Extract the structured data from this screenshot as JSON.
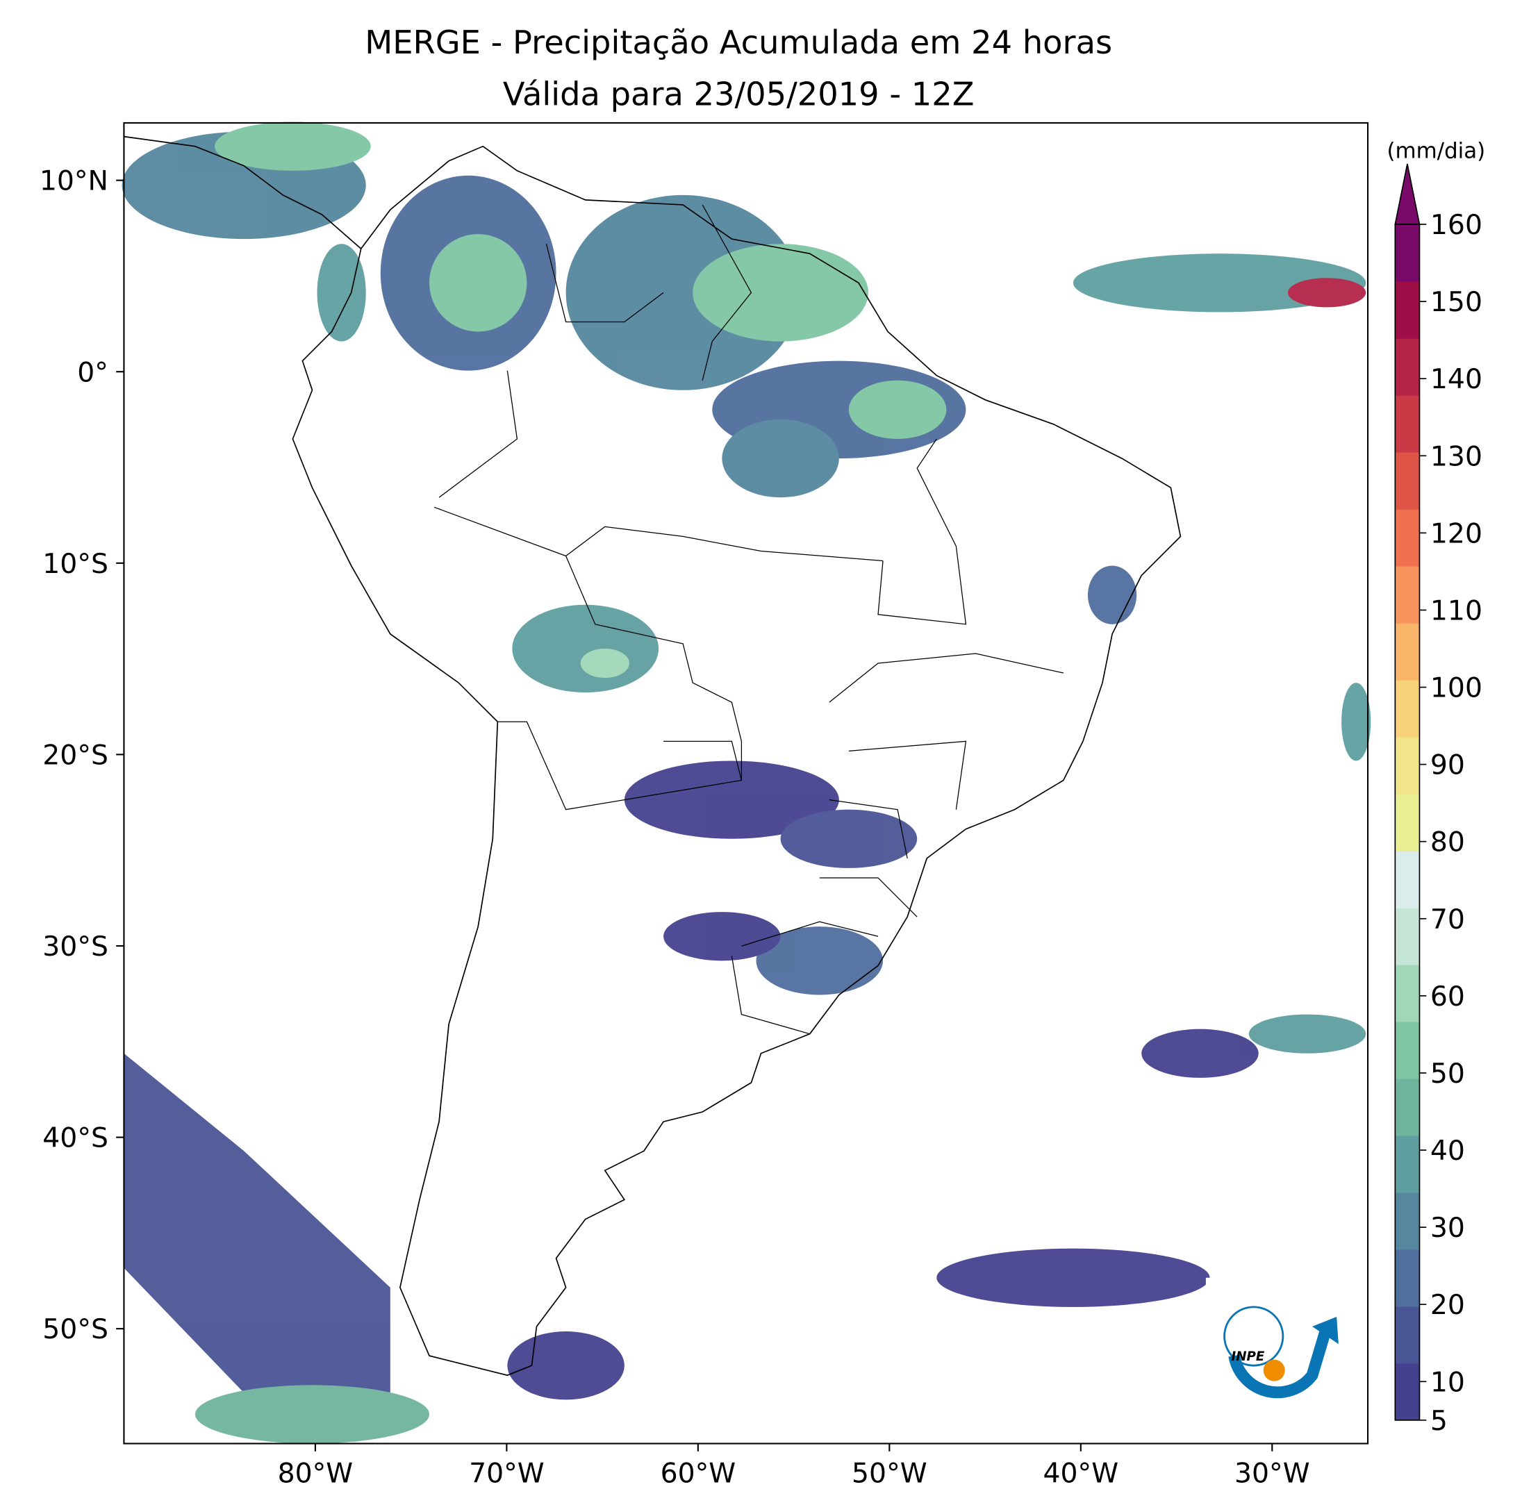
{
  "chart_data": {
    "type": "map",
    "title": "MERGE - Precipitação Acumulada em 24 horas",
    "subtitle": "Válida para 23/05/2019 - 12Z",
    "xlim": [
      -90,
      -25
    ],
    "ylim": [
      -56,
      13
    ],
    "xticks": [
      {
        "value": -80,
        "label": "80°W"
      },
      {
        "value": -70,
        "label": "70°W"
      },
      {
        "value": -60,
        "label": "60°W"
      },
      {
        "value": -50,
        "label": "50°W"
      },
      {
        "value": -40,
        "label": "40°W"
      },
      {
        "value": -30,
        "label": "30°W"
      }
    ],
    "yticks": [
      {
        "value": 10,
        "label": "10°N"
      },
      {
        "value": 0,
        "label": "0°"
      },
      {
        "value": -10,
        "label": "10°S"
      },
      {
        "value": -20,
        "label": "20°S"
      },
      {
        "value": -30,
        "label": "30°S"
      },
      {
        "value": -40,
        "label": "40°S"
      },
      {
        "value": -50,
        "label": "50°S"
      }
    ],
    "colorbar": {
      "label": "(mm/dia)",
      "lim": [
        5,
        160
      ],
      "ticks": [
        5,
        10,
        20,
        30,
        40,
        50,
        60,
        70,
        80,
        90,
        100,
        110,
        120,
        130,
        140,
        150,
        160
      ],
      "colors": [
        "#46418f",
        "#4a5596",
        "#506e9e",
        "#55879f",
        "#5f9fa0",
        "#6fb49c",
        "#7fc6a4",
        "#a2d6b8",
        "#c5e6d6",
        "#dbecec",
        "#e7ef92",
        "#f2e58a",
        "#f8d17a",
        "#f9b56a",
        "#f7935c",
        "#ef7150",
        "#de5447",
        "#c93a46",
        "#b32447",
        "#9e0f48",
        "#7a0a6a"
      ],
      "extend_color": "#7a0a6a"
    },
    "logo": "INPE"
  }
}
